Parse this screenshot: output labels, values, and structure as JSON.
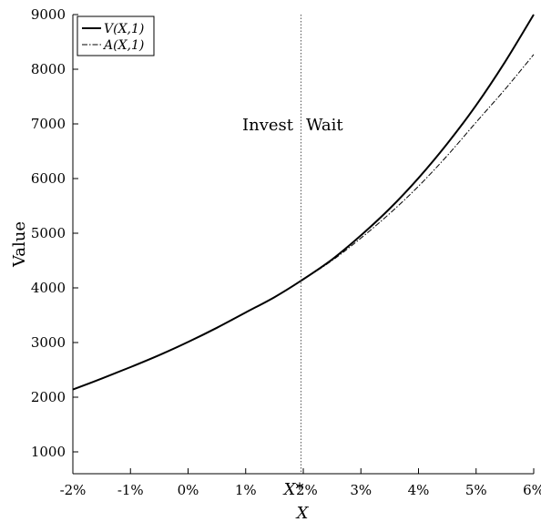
{
  "chart_data": {
    "type": "line",
    "xlabel": "X",
    "ylabel": "Value",
    "x_tick_labels": [
      "-2%",
      "-1%",
      "0%",
      "1%",
      "X*",
      "2%",
      "3%",
      "4%",
      "5%",
      "6%"
    ],
    "xlim": [
      -0.02,
      0.06
    ],
    "ylim": [
      600,
      9000
    ],
    "yticks": [
      1000,
      2000,
      3000,
      4000,
      5000,
      6000,
      7000,
      8000,
      9000
    ],
    "threshold": {
      "x": 0.0196,
      "label": "X*"
    },
    "annotations": {
      "left": "Invest",
      "right": "Wait"
    },
    "legend_position": "top-left",
    "series": [
      {
        "name": "V(X,1)",
        "style": "solid",
        "x": [
          -0.02,
          -0.015,
          -0.01,
          -0.005,
          0.0,
          0.005,
          0.01,
          0.015,
          0.0196,
          0.025,
          0.03,
          0.035,
          0.04,
          0.045,
          0.05,
          0.055,
          0.06
        ],
        "y": [
          2140,
          2340,
          2550,
          2770,
          3010,
          3270,
          3550,
          3830,
          4130,
          4520,
          4960,
          5450,
          6010,
          6640,
          7340,
          8130,
          9000
        ]
      },
      {
        "name": "A(X,1)",
        "style": "dash-dot",
        "x": [
          -0.02,
          -0.015,
          -0.01,
          -0.005,
          0.0,
          0.005,
          0.01,
          0.015,
          0.0196,
          0.025,
          0.03,
          0.035,
          0.04,
          0.045,
          0.05,
          0.055,
          0.06
        ],
        "y": [
          2140,
          2340,
          2550,
          2770,
          3010,
          3270,
          3550,
          3830,
          4130,
          4500,
          4910,
          5360,
          5860,
          6420,
          7030,
          7630,
          8270
        ]
      }
    ]
  }
}
